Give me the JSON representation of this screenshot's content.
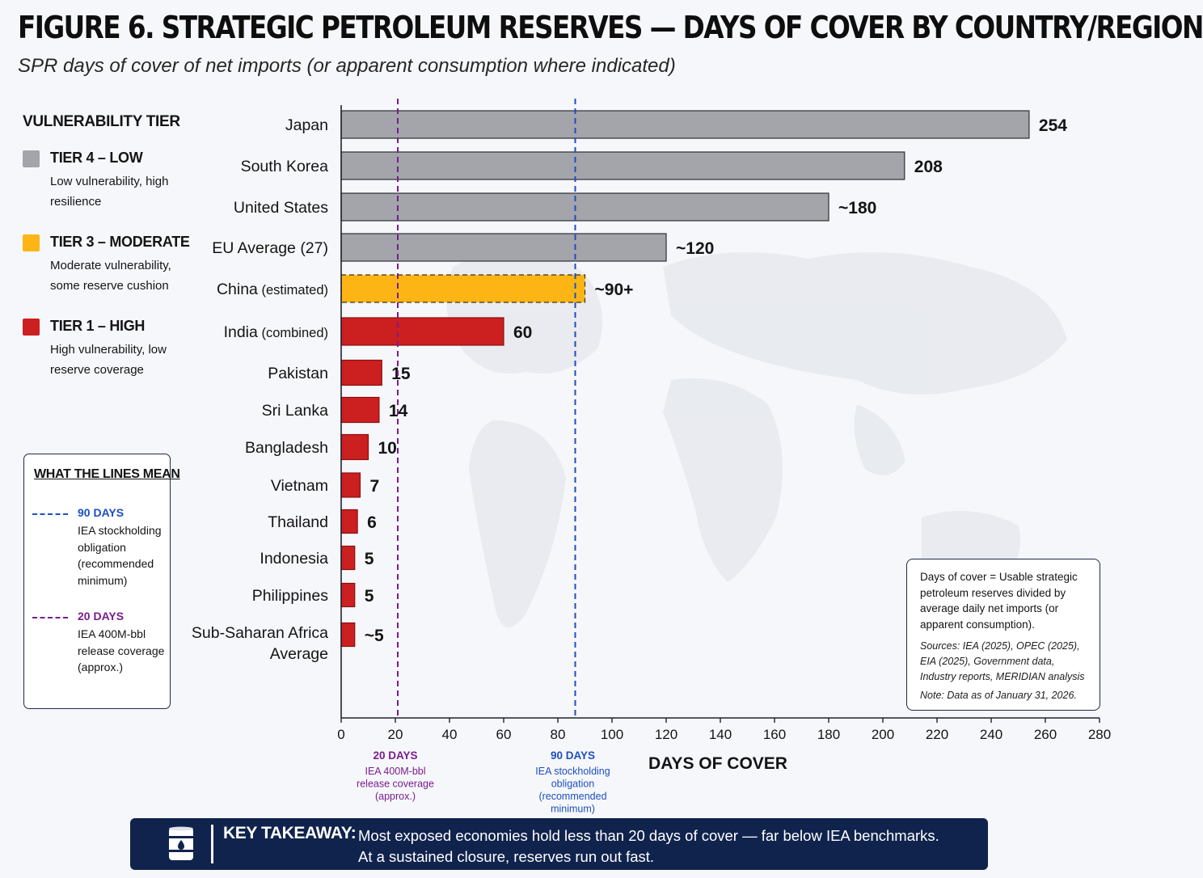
{
  "figure": {
    "title": "FIGURE 6. STRATEGIC PETROLEUM RESERVES — DAYS OF COVER BY COUNTRY/REGION",
    "subtitle": "SPR days of cover of net imports (or apparent consumption where indicated)"
  },
  "legend": {
    "heading": "VULNERABILITY TIER",
    "tiers": [
      {
        "name": "TIER 4 – LOW",
        "desc": "Low vulnerability, high resilience",
        "color": "#a3a5ab"
      },
      {
        "name": "TIER 3 – MODERATE",
        "desc": "Moderate vulnerability, some reserve cushion",
        "color": "#fcb514"
      },
      {
        "name": "TIER 1 – HIGH",
        "desc": "High vulnerability, low reserve coverage",
        "color": "#cc1f1f"
      }
    ]
  },
  "lines_legend": {
    "heading": "WHAT THE LINES MEAN",
    "items": [
      {
        "name": "90 DAYS",
        "desc": "IEA stockholding obligation (recommended minimum)",
        "color": "#1d4fbf"
      },
      {
        "name": "20 DAYS",
        "desc": "IEA 400M-bbl release coverage (approx.)",
        "color": "#7a1c8f"
      }
    ]
  },
  "chart_data": {
    "type": "bar",
    "orientation": "horizontal",
    "categories": [
      "Japan",
      "South Korea",
      "United States",
      "EU Average (27)",
      "China (estimated)",
      "India (combined)",
      "Pakistan",
      "Sri Lanka",
      "Bangladesh",
      "Vietnam",
      "Thailand",
      "Indonesia",
      "Philippines",
      "Sub-Saharan Africa Average"
    ],
    "category_labels": [
      {
        "main": "Japan",
        "qual": ""
      },
      {
        "main": "South Korea",
        "qual": ""
      },
      {
        "main": "United States",
        "qual": ""
      },
      {
        "main": "EU Average (27)",
        "qual": ""
      },
      {
        "main": "China",
        "qual": "(estimated)"
      },
      {
        "main": "India",
        "qual": "(combined)"
      },
      {
        "main": "Pakistan",
        "qual": ""
      },
      {
        "main": "Sri Lanka",
        "qual": ""
      },
      {
        "main": "Bangladesh",
        "qual": ""
      },
      {
        "main": "Vietnam",
        "qual": ""
      },
      {
        "main": "Thailand",
        "qual": ""
      },
      {
        "main": "Indonesia",
        "qual": ""
      },
      {
        "main": "Philippines",
        "qual": ""
      },
      {
        "main": "Sub-Saharan Africa",
        "qual": "",
        "line2": "Average"
      }
    ],
    "values": [
      254,
      208,
      180,
      120,
      90,
      60,
      15,
      14,
      10,
      7,
      6,
      5,
      5,
      5
    ],
    "value_labels": [
      "254",
      "208",
      "~180",
      "~120",
      "~90+",
      "60",
      "15",
      "14",
      "10",
      "7",
      "6",
      "5",
      "5",
      "~5"
    ],
    "tiers": [
      "low",
      "low",
      "low",
      "low",
      "moderate",
      "high",
      "high",
      "high",
      "high",
      "high",
      "high",
      "high",
      "high",
      "high"
    ],
    "colors": {
      "low": "#a3a5ab",
      "moderate": "#fcb514",
      "high": "#cc1f1f"
    },
    "xlim": [
      0,
      280
    ],
    "xticks": [
      0,
      20,
      40,
      60,
      80,
      100,
      120,
      140,
      160,
      180,
      200,
      220,
      240,
      260,
      280
    ],
    "xlabel": "DAYS OF COVER",
    "reference_lines": [
      {
        "value": 20,
        "label": "20 DAYS",
        "desc_lines": [
          "IEA 400M-bbl",
          "release coverage",
          "(approx.)"
        ],
        "color": "#7a1c8f"
      },
      {
        "value": 90,
        "label": "90 DAYS",
        "desc_lines": [
          "IEA stockholding",
          "obligation",
          "(recommended",
          "minimum)"
        ],
        "color": "#1d4fbf"
      }
    ]
  },
  "note": {
    "definition": "Days of cover = Usable strategic petroleum reserves divided by average daily net imports (or apparent consumption).",
    "sources": "Sources: IEA (2025), OPEC (2025), EIA (2025), Government data, Industry reports, MERIDIAN analysis",
    "date": "Note: Data as of January 31, 2026."
  },
  "takeaway": {
    "label": "KEY TAKEAWAY:",
    "line1": "Most exposed economies hold less than 20 days of cover — far below IEA benchmarks.",
    "line2": "At a sustained closure, reserves run out fast.",
    "icon": "oil-barrel-icon"
  }
}
